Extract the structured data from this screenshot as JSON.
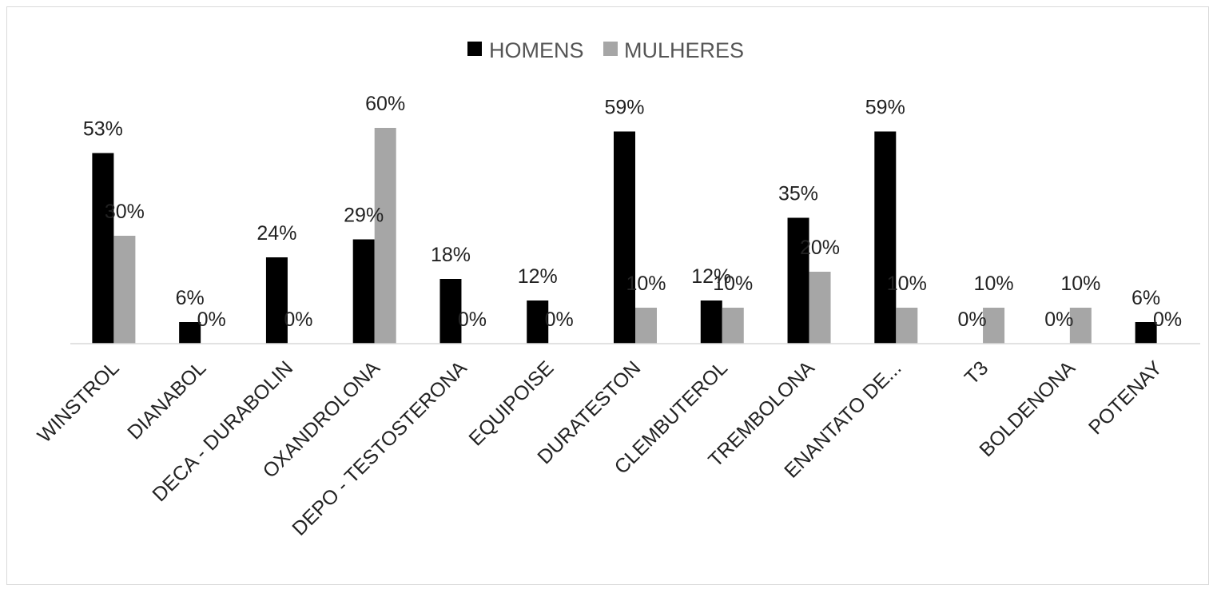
{
  "chart_data": {
    "type": "bar",
    "title": "",
    "xlabel": "",
    "ylabel": "",
    "ylim": [
      0,
      0.6
    ],
    "grid": false,
    "legend_position": "top-center",
    "categories": [
      "WINSTROL",
      "DIANABOL",
      "DECA - DURABOLIN",
      "OXANDROLONA",
      "DEPO - TESTOSTERONA",
      "EQUIPOISE",
      "DURATESTON",
      "CLEMBUTEROL",
      "TREMBOLONA",
      "ENANTATO DE...",
      "T3",
      "BOLDENONA",
      "POTENAY"
    ],
    "series": [
      {
        "name": "HOMENS",
        "color": "#000000",
        "values": [
          0.53,
          0.06,
          0.24,
          0.29,
          0.18,
          0.12,
          0.59,
          0.12,
          0.35,
          0.59,
          0,
          0,
          0.06
        ],
        "labels": [
          "53%",
          "6%",
          "24%",
          "29%",
          "18%",
          "12%",
          "59%",
          "12%",
          "35%",
          "59%",
          "0%",
          "0%",
          "6%"
        ]
      },
      {
        "name": "MULHERES",
        "color": "#a6a6a6",
        "values": [
          0.3,
          0,
          0,
          0.6,
          0,
          0,
          0.1,
          0.1,
          0.2,
          0.1,
          0.1,
          0.1,
          0
        ],
        "labels": [
          "30%",
          "0%",
          "0%",
          "60%",
          "0%",
          "0%",
          "10%",
          "10%",
          "20%",
          "10%",
          "10%",
          "10%",
          "0%"
        ]
      }
    ]
  }
}
